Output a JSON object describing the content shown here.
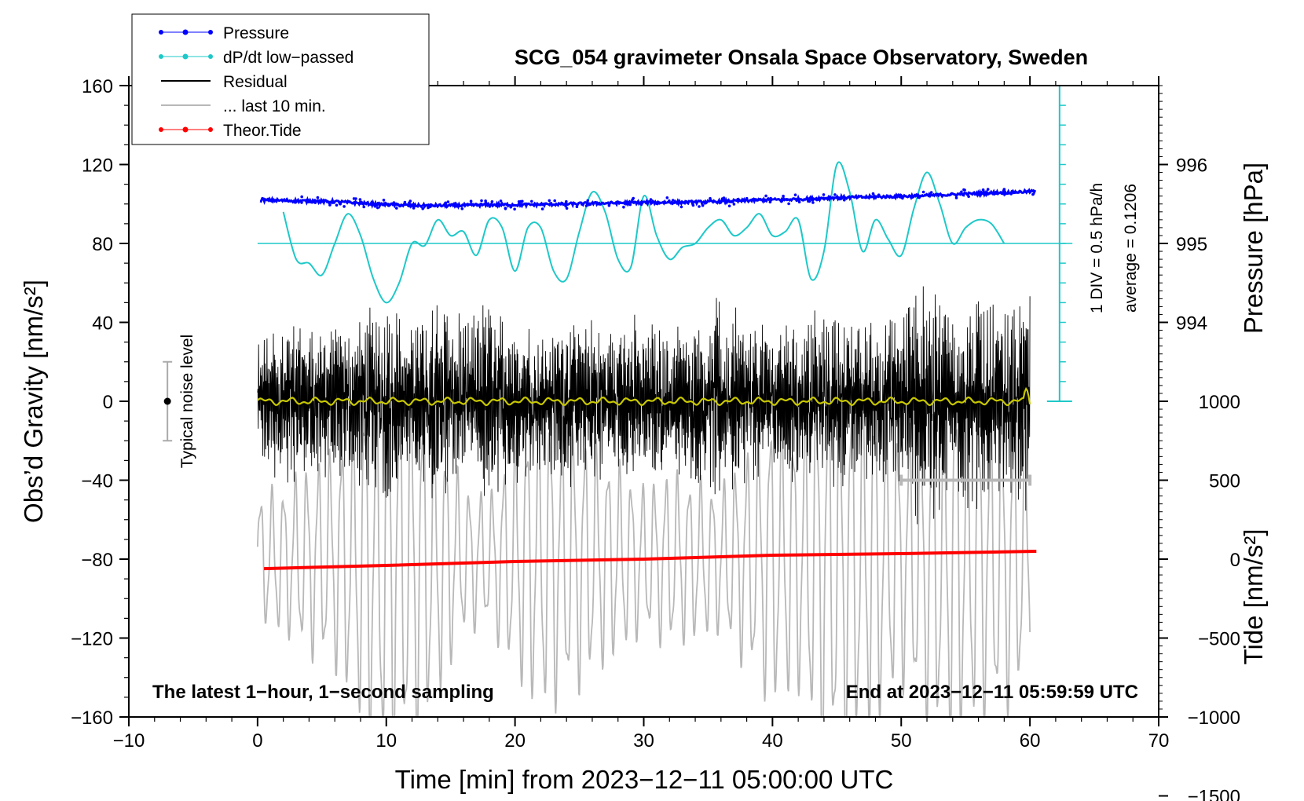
{
  "colors": {
    "pressure": "#0000ff",
    "dpdt": "#1fc8c8",
    "residual": "#000000",
    "last10": "#b8b8b8",
    "tide": "#ff0000",
    "smoothed": "#c8c800"
  },
  "chart_data": {
    "type": "line",
    "title": "SCG_054 gravimeter Onsala Space Observatory, Sweden",
    "xlabel": "Time [min] from 2023−12−11 05:00:00 UTC",
    "ylabel": "Obs’d Gravity [nm/s²]",
    "xlim": [
      -10,
      70
    ],
    "ylim": [
      -160,
      160
    ],
    "x_ticks": [
      -10,
      0,
      10,
      20,
      30,
      40,
      50,
      60,
      70
    ],
    "x_tick_labels": [
      "−10",
      "0",
      "10",
      "20",
      "30",
      "40",
      "50",
      "60",
      "70"
    ],
    "y_ticks": [
      -160,
      -120,
      -80,
      -40,
      0,
      40,
      80,
      120,
      160
    ],
    "y_tick_labels": [
      "−160",
      "−120",
      "−80",
      "−40",
      "0",
      "40",
      "80",
      "120",
      "160"
    ],
    "pressure_axis": {
      "label": "Pressure [hPa]",
      "ticks": [
        994,
        995,
        996
      ],
      "tick_labels": [
        "994",
        "995",
        "996"
      ],
      "gravity_equivalent": [
        40,
        80,
        120
      ]
    },
    "tide_axis": {
      "label": "Tide [nm/s²]",
      "ticks": [
        -1500,
        -1000,
        -500,
        0,
        500,
        1000
      ],
      "tick_labels": [
        "−1500",
        "−1000",
        "−500",
        "0",
        "500",
        "1000"
      ]
    },
    "dpdt_scale": {
      "label1": "1 DIV = 0.5 hPa/h",
      "label2": "average = 0.1206",
      "baseline_gravity": 80,
      "bar_top_gravity": 160,
      "bar_bottom_gravity": 0,
      "divisions": 16
    },
    "noise": {
      "label": "Typical noise level",
      "x": -7,
      "center": 0,
      "half_range": 20
    },
    "last10_bar": {
      "label": "",
      "x_start": 50,
      "x_end": 60,
      "tide_value": 500
    },
    "series": [
      {
        "name": "Pressure",
        "unit": "hPa",
        "x": [
          0.2,
          3,
          6,
          9,
          12,
          15,
          18,
          21,
          24,
          27,
          30,
          33,
          36,
          39,
          42,
          45,
          48,
          51,
          54,
          57,
          60.4
        ],
        "values": [
          995.55,
          995.54,
          995.53,
          995.5,
          995.48,
          995.48,
          995.49,
          995.49,
          995.5,
          995.51,
          995.52,
          995.52,
          995.53,
          995.55,
          995.56,
          995.58,
          995.59,
          995.6,
          995.62,
          995.64,
          995.66
        ]
      },
      {
        "name": "dP/dt low−passed",
        "unit": "gravity-equivalent",
        "x": [
          2,
          3,
          4,
          5,
          6,
          7,
          8,
          9,
          10,
          11,
          12,
          13,
          14,
          15,
          16,
          17,
          18,
          19,
          20,
          21,
          22,
          23,
          24,
          25,
          26,
          27,
          28,
          29,
          30,
          31,
          32,
          33,
          34,
          35,
          36,
          37,
          38,
          39,
          40,
          41,
          42,
          43,
          44,
          45,
          46,
          47,
          48,
          49,
          50,
          51,
          52,
          53,
          54,
          55,
          56,
          57,
          58
        ],
        "values": [
          96,
          72,
          70,
          64,
          80,
          95,
          84,
          62,
          50,
          60,
          80,
          79,
          92,
          84,
          86,
          74,
          92,
          88,
          66,
          88,
          88,
          66,
          62,
          86,
          106,
          96,
          72,
          68,
          104,
          84,
          72,
          78,
          80,
          88,
          92,
          84,
          88,
          95,
          84,
          86,
          92,
          62,
          76,
          120,
          106,
          76,
          92,
          82,
          74,
          98,
          116,
          100,
          80,
          88,
          92,
          90,
          80
        ]
      },
      {
        "name": "Residual",
        "unit": "nm/s²",
        "x": [
          0,
          2,
          4,
          6,
          8,
          10,
          12,
          14,
          16,
          18,
          20,
          22,
          24,
          26,
          28,
          30,
          32,
          34,
          36,
          38,
          40,
          42,
          44,
          46,
          48,
          50,
          52,
          54,
          56,
          58,
          60
        ],
        "envelope": [
          32,
          48,
          40,
          40,
          45,
          55,
          40,
          58,
          45,
          55,
          48,
          35,
          45,
          42,
          40,
          50,
          38,
          42,
          55,
          42,
          38,
          42,
          52,
          40,
          42,
          50,
          72,
          48,
          62,
          45,
          65
        ]
      },
      {
        "name": "... last 10 min.",
        "unit": "nm/s²",
        "x": [
          0,
          2,
          4,
          6,
          8,
          10,
          12,
          14,
          16,
          18,
          20,
          22,
          24,
          26,
          28,
          30,
          32,
          34,
          36,
          38,
          40,
          42,
          44,
          46,
          48,
          50,
          52,
          54,
          56,
          58,
          60
        ],
        "envelope": [
          45,
          50,
          65,
          75,
          110,
          140,
          130,
          95,
          50,
          45,
          80,
          105,
          95,
          80,
          65,
          50,
          60,
          55,
          50,
          75,
          100,
          90,
          140,
          125,
          115,
          85,
          110,
          125,
          110,
          105,
          80
        ]
      },
      {
        "name": "Theor.Tide",
        "unit": "nm/s² (tide axis)",
        "x": [
          0.5,
          10,
          20,
          30,
          40,
          50,
          60.5
        ],
        "values": [
          -60,
          -40,
          -15,
          0,
          25,
          35,
          50
        ]
      }
    ],
    "legend": [
      {
        "label": "Pressure",
        "color": "#0000ff",
        "marker": "dot"
      },
      {
        "label": "dP/dt low−passed",
        "color": "#1fc8c8",
        "marker": "dot"
      },
      {
        "label": "Residual",
        "color": "#000000",
        "marker": "line"
      },
      {
        "label": "... last 10 min.",
        "color": "#b8b8b8",
        "marker": "line"
      },
      {
        "label": "Theor.Tide",
        "color": "#ff0000",
        "marker": "dot"
      }
    ],
    "legend_position": "top-left",
    "annotation_left": "The latest 1−hour, 1−second sampling",
    "annotation_right": "End at 2023−12−11 05:59:59 UTC",
    "grid": false
  }
}
